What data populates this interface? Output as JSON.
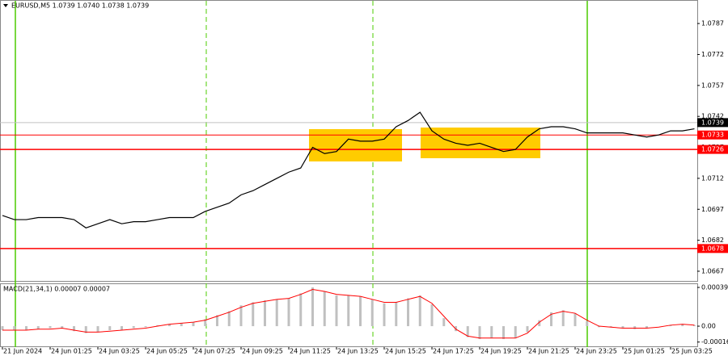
{
  "chart_data": [
    {
      "type": "line",
      "title": "EURUSD,M5 1.0739 1.0740 1.0738 1.0739",
      "categories": [
        "21 Jun 2024",
        null,
        null,
        null,
        "24 Jun 01:25",
        null,
        null,
        null,
        "24 Jun 03:25",
        null,
        null,
        null,
        "24 Jun 05:25",
        null,
        null,
        null,
        "24 Jun 07:25",
        null,
        null,
        null,
        "24 Jun 09:25",
        null,
        null,
        null,
        "24 Jun 11:25",
        null,
        null,
        null,
        "24 Jun 13:25",
        null,
        null,
        null,
        "24 Jun 15:25",
        null,
        null,
        null,
        "24 Jun 17:25",
        null,
        null,
        null,
        "24 Jun 19:25",
        null,
        null,
        null,
        "24 Jun 21:25",
        null,
        null,
        null,
        "24 Jun 23:25",
        null,
        null,
        null,
        "25 Jun 01:25",
        null,
        null,
        null,
        "25 Jun 03:25",
        null,
        null
      ],
      "values": [
        1.0694,
        1.0692,
        1.0692,
        1.0693,
        1.0693,
        1.0693,
        1.0692,
        1.0688,
        1.069,
        1.0692,
        1.069,
        1.0691,
        1.0691,
        1.0692,
        1.0693,
        1.0693,
        1.0693,
        1.0696,
        1.0698,
        1.07,
        1.0704,
        1.0706,
        1.0709,
        1.0712,
        1.0715,
        1.0717,
        1.0727,
        1.0724,
        1.0725,
        1.0731,
        1.073,
        1.073,
        1.0731,
        1.0737,
        1.074,
        1.0744,
        1.0735,
        1.0731,
        1.0729,
        1.0728,
        1.0729,
        1.0727,
        1.0725,
        1.0726,
        1.0732,
        1.0736,
        1.0737,
        1.0737,
        1.0736,
        1.0734,
        1.0734,
        1.0734,
        1.0734,
        1.0733,
        1.0732,
        1.0733,
        1.0735,
        1.0735,
        1.0736
      ],
      "color": "#000000",
      "ylim": [
        1.06623,
        1.0798
      ],
      "yticks": [
        1.0787,
        1.0772,
        1.0757,
        1.0742,
        1.0727,
        1.0712,
        1.0697,
        1.0682,
        1.0667
      ],
      "levels": [
        {
          "value": 1.0733,
          "color": "#ff0000"
        },
        {
          "value": 1.0726,
          "color": "#ff0000"
        },
        {
          "value": 1.0678,
          "color": "#ff0000"
        }
      ],
      "last_price": 1.0739
    },
    {
      "type": "macd",
      "title": "MACD(21,34,1) 0.00007 0.00007",
      "series": [
        {
          "type": "bar",
          "color": "#c0c0c0",
          "values": [
            -4e-05,
            -4e-05,
            -4e-05,
            -3e-05,
            -2e-05,
            -2e-05,
            -5e-05,
            -7e-05,
            -6e-05,
            -4e-05,
            -4e-05,
            -2e-05,
            -1e-05,
            1e-05,
            2e-05,
            3e-05,
            4e-05,
            7e-05,
            0.00011,
            0.00015,
            0.00021,
            0.00024,
            0.00026,
            0.00027,
            0.00028,
            0.00033,
            0.00039,
            0.00035,
            0.00031,
            0.00031,
            0.0003,
            0.00027,
            0.00023,
            0.00024,
            0.00028,
            0.00031,
            0.00022,
            8e-05,
            -5e-05,
            -0.00011,
            -0.00013,
            -0.00012,
            -0.00013,
            -0.00012,
            -6e-05,
            6e-05,
            0.00014,
            0.00016,
            0.00013,
            5e-05,
            -1e-05,
            -1e-05,
            -2e-05,
            -3e-05,
            -2e-05,
            0,
            1e-05,
            2e-05,
            1e-05
          ]
        },
        {
          "type": "line",
          "color": "#ff0000",
          "values": [
            -4e-05,
            -4e-05,
            -4e-05,
            -3e-05,
            -3e-05,
            -2e-05,
            -4e-05,
            -6e-05,
            -6e-05,
            -5e-05,
            -4e-05,
            -3e-05,
            -2e-05,
            0,
            2e-05,
            3e-05,
            4e-05,
            6e-05,
            0.0001,
            0.00014,
            0.00019,
            0.00023,
            0.00025,
            0.00027,
            0.00028,
            0.00032,
            0.00037,
            0.00035,
            0.00032,
            0.00031,
            0.0003,
            0.00027,
            0.00024,
            0.00024,
            0.00027,
            0.0003,
            0.00023,
            0.0001,
            -3e-05,
            -0.0001,
            -0.00012,
            -0.00012,
            -0.00012,
            -0.00012,
            -7e-05,
            4e-05,
            0.00012,
            0.00015,
            0.00013,
            6e-05,
            0,
            -1e-05,
            -2e-05,
            -2e-05,
            -2e-05,
            -1e-05,
            1e-05,
            2e-05,
            1e-05
          ]
        }
      ],
      "ylim": [
        -0.000211,
        0.000423
      ],
      "yticks": [
        0.00039,
        {
          "value": 0,
          "label": "0.00"
        },
        -0.00016
      ]
    }
  ]
}
